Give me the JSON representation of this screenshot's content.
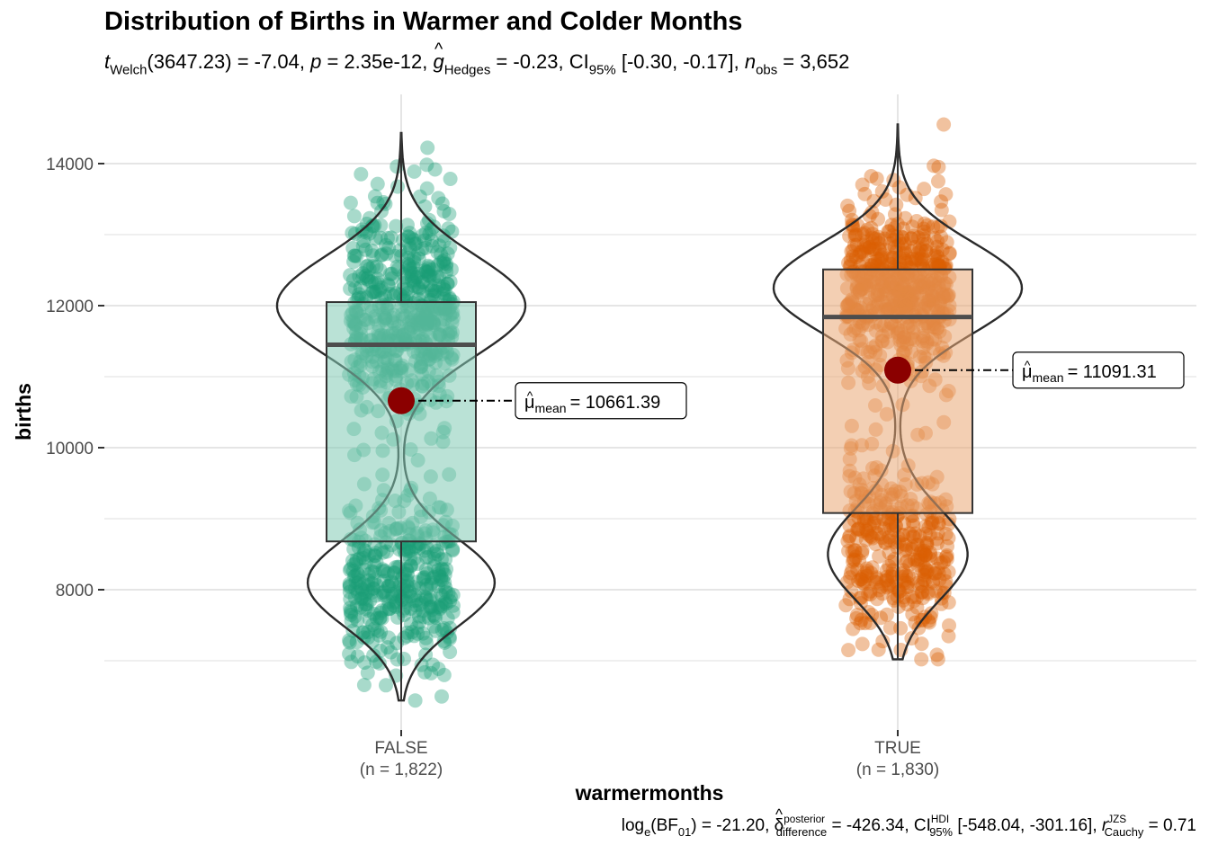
{
  "chart_data": {
    "type": "violin-box-scatter",
    "title": "Distribution of Births in Warmer and Colder Months",
    "subtitle": {
      "stat_symbol": "t",
      "stat_sub": "Welch",
      "df": "(3647.23)",
      "stat_value": "= -7.04,",
      "p_symbol": "p",
      "p_value": "= 2.35e-12,",
      "effect_symbol": "g",
      "effect_sub": "Hedges",
      "effect_value": "= -0.23,",
      "ci_symbol": "CI",
      "ci_sub": "95%",
      "ci_value": "[-0.30, -0.17],",
      "n_symbol": "n",
      "n_sub": "obs",
      "n_value": "= 3,652"
    },
    "caption": {
      "bf_symbol": "log",
      "bf_sub": "e",
      "bf_arg": "(BF",
      "bf_arg_sub": "01",
      "bf_close": ")",
      "bf_value": "= -21.20,",
      "delta_symbol": "δ",
      "delta_sup": "posterior",
      "delta_sub": "difference",
      "delta_value": "= -426.34,",
      "ci_symbol": "CI",
      "ci_sup": "HDI",
      "ci_sub": "95%",
      "ci_value": "[-548.04, -301.16],",
      "r_symbol": "r",
      "r_sup": "JZS",
      "r_sub": "Cauchy",
      "r_value": "= 0.71"
    },
    "xlabel": "warmermonths",
    "ylabel": "births",
    "ylim": [
      6000,
      14900
    ],
    "yticks": [
      8000,
      10000,
      12000,
      14000
    ],
    "ytick_labels": [
      "8000",
      "10000",
      "12000",
      "14000"
    ],
    "grid": true,
    "groups": [
      {
        "name": "FALSE",
        "n_label": "(n = 1,822)",
        "color": "#1B9E77",
        "box": {
          "q1": 8680,
          "median": 11450,
          "q3": 12050,
          "whisker_low": 6440,
          "whisker_high": 14430
        },
        "violin_range": [
          6440,
          14430
        ],
        "mean": 10661.39,
        "mean_label_symbol": "μ",
        "mean_label_sub": "mean",
        "mean_label_value": "= 10661.39"
      },
      {
        "name": "TRUE",
        "n_label": "(n = 1,830)",
        "color": "#D95F02",
        "box": {
          "q1": 9080,
          "median": 11840,
          "q3": 12510,
          "whisker_low": 7020,
          "whisker_high": 14550
        },
        "violin_range": [
          7020,
          14550
        ],
        "mean": 11091.31,
        "mean_label_symbol": "μ",
        "mean_label_sub": "mean",
        "mean_label_value": "= 11091.31"
      }
    ],
    "mean_point_color": "#8B0000"
  }
}
